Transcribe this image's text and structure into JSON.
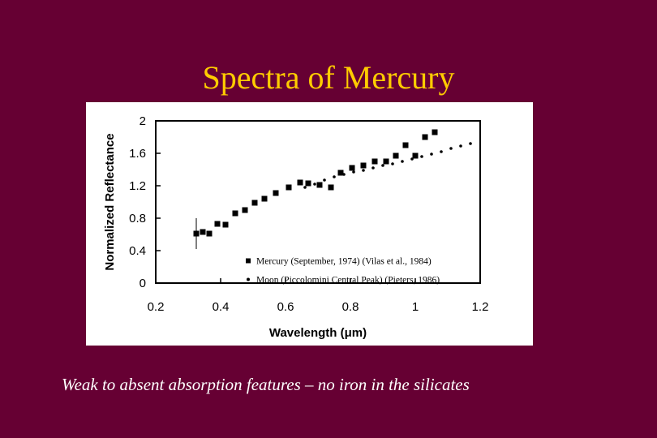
{
  "slide": {
    "title": "Spectra of Mercury",
    "caption": "Weak to absent absorption features – no iron in the silicates",
    "background": "#660033",
    "title_color": "#FFCC00",
    "caption_color": "#FFFFFF"
  },
  "chart_data": {
    "type": "scatter",
    "title": "",
    "xlabel": "Wavelength (μm)",
    "ylabel": "Normalized Reflectance",
    "xlim": [
      0.2,
      1.2
    ],
    "ylim": [
      0,
      2
    ],
    "xticks": [
      "0.2",
      "0.4",
      "0.6",
      "0.8",
      "1",
      "1.2"
    ],
    "yticks": [
      "0",
      "0.4",
      "0.8",
      "1.2",
      "1.6",
      "2"
    ],
    "grid": false,
    "legend_position": "inside-lower-right",
    "series": [
      {
        "name": "Mercury (September, 1974) (Vilas et al., 1984)",
        "marker": "square",
        "x": [
          0.325,
          0.345,
          0.365,
          0.39,
          0.415,
          0.445,
          0.475,
          0.505,
          0.535,
          0.57,
          0.61,
          0.645,
          0.67,
          0.705,
          0.74,
          0.77,
          0.805,
          0.84,
          0.875,
          0.91,
          0.94,
          0.97,
          1.0,
          1.03,
          1.06
        ],
        "y": [
          0.61,
          0.63,
          0.61,
          0.73,
          0.72,
          0.86,
          0.9,
          0.99,
          1.04,
          1.11,
          1.18,
          1.24,
          1.23,
          1.21,
          1.18,
          1.36,
          1.42,
          1.45,
          1.5,
          1.5,
          1.57,
          1.7,
          1.57,
          1.8,
          1.86
        ]
      },
      {
        "name": "Moon (Piccolomini Central Peak) (Pieters, 1986)",
        "marker": "dot",
        "x": [
          0.66,
          0.69,
          0.72,
          0.75,
          0.78,
          0.81,
          0.84,
          0.87,
          0.9,
          0.93,
          0.96,
          0.99,
          1.02,
          1.05,
          1.08,
          1.11,
          1.14,
          1.17
        ],
        "y": [
          1.18,
          1.22,
          1.27,
          1.31,
          1.34,
          1.37,
          1.39,
          1.42,
          1.45,
          1.47,
          1.5,
          1.53,
          1.56,
          1.59,
          1.62,
          1.66,
          1.69,
          1.72
        ]
      }
    ],
    "error_bar": {
      "x": 0.325,
      "y_low": 0.42,
      "y_high": 0.8
    }
  }
}
